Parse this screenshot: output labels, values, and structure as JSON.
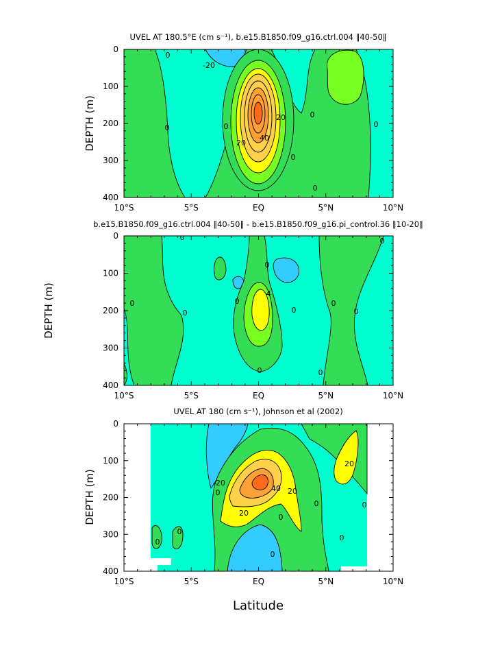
{
  "figure": {
    "shared_xlabel": "Latitude"
  },
  "colors": {
    "sky": "#33ccff",
    "cyan": "#00ffd0",
    "green": "#33dd55",
    "lime": "#77ff22",
    "yellow": "#ffff00",
    "gold": "#ffd04a",
    "orange": "#ffa035",
    "red": "#ff6a1a",
    "outline": "#000000"
  },
  "chart_data": [
    {
      "type": "contour",
      "title": "UVEL AT 180.5°E (cm s⁻¹), b.e15.B1850.f09_g16.ctrl.004 ‖40-50‖",
      "xlabel": "",
      "ylabel": "DEPTH (m)",
      "xlim": [
        -10,
        10
      ],
      "ylim": [
        0,
        400
      ],
      "y_inverted": true,
      "xticks": [
        "10°S",
        "5°S",
        "EQ",
        "5°N",
        "10°N"
      ],
      "yticks": [
        "0",
        "100",
        "200",
        "300",
        "400"
      ],
      "contour_interval": 10,
      "contour_labels": [
        "0",
        "-20",
        "0",
        "0",
        "20",
        "20",
        "40",
        "0",
        "0",
        "0",
        "0"
      ],
      "max_value": 95,
      "core": {
        "lat": 0,
        "depth": 170
      },
      "westward_minimum": {
        "lat": -2.7,
        "depth": 10,
        "value": -25
      }
    },
    {
      "type": "contour",
      "title": "b.e15.B1850.f09_g16.ctrl.004 ‖40-50‖ - b.e15.B1850.f09_g16.pi_control.36 ‖10-20‖",
      "xlabel": "",
      "ylabel": "DEPTH (m)",
      "xlim": [
        -10,
        10
      ],
      "ylim": [
        0,
        400
      ],
      "y_inverted": true,
      "xticks": [
        "10°S",
        "5°S",
        "EQ",
        "5°N",
        "10°N"
      ],
      "yticks": [
        "0",
        "100",
        "200",
        "300",
        "400"
      ],
      "contour_labels": [
        "0",
        "0",
        "0",
        "0",
        "0",
        "0",
        "4",
        "0",
        "0",
        "0",
        "0",
        "0"
      ],
      "max_value": 6,
      "core": {
        "lat": 0,
        "depth": 200
      }
    },
    {
      "type": "contour",
      "title": "UVEL AT 180 (cm s⁻¹), Johnson et al (2002)",
      "xlabel": "Latitude",
      "ylabel": "DEPTH (m)",
      "xlim": [
        -10,
        10
      ],
      "ylim": [
        0,
        400
      ],
      "y_inverted": true,
      "xticks": [
        "10°S",
        "5°S",
        "EQ",
        "5°N",
        "10°N"
      ],
      "yticks": [
        "0",
        "100",
        "200",
        "300",
        "400"
      ],
      "data_lat_range": [
        -8,
        8
      ],
      "contour_labels": [
        "-20",
        "0",
        "0",
        "0",
        "20",
        "40",
        "20",
        "20",
        "0",
        "0",
        "0",
        "0",
        "0"
      ],
      "max_value": 90,
      "core": {
        "lat": 0.5,
        "depth": 165
      }
    }
  ]
}
